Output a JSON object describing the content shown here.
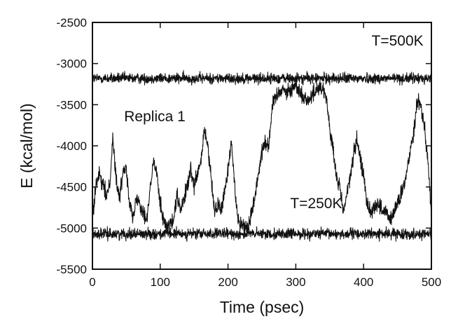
{
  "chart_data": {
    "type": "line",
    "title": "",
    "xlabel": "Time (psec)",
    "ylabel": "E (kcal/mol)",
    "xlim": [
      0,
      500
    ],
    "ylim": [
      -5500,
      -2500
    ],
    "xticks": [
      0,
      100,
      200,
      300,
      400,
      500
    ],
    "yticks": [
      -2500,
      -3000,
      -3500,
      -4000,
      -4500,
      -5000,
      -5500
    ],
    "grid": false,
    "legend": "none",
    "line_color": "#111111",
    "annotations": [
      {
        "text": "T=500K",
        "x": 450,
        "y": -2780
      },
      {
        "text": "Replica 1",
        "x": 92,
        "y": -3700
      },
      {
        "text": "T=250K",
        "x": 330,
        "y": -4760
      }
    ],
    "series": [
      {
        "role": "T=500K",
        "mean": -3180,
        "noise": 45,
        "x": [
          0,
          100,
          200,
          300,
          400,
          500
        ],
        "values": [
          -3180,
          -3180,
          -3180,
          -3180,
          -3180,
          -3180
        ]
      },
      {
        "role": "T=250K",
        "mean": -5070,
        "noise": 45,
        "x": [
          0,
          100,
          200,
          300,
          400,
          500
        ],
        "values": [
          -5070,
          -5070,
          -5070,
          -5070,
          -5070,
          -5070
        ]
      },
      {
        "role": "Replica 1",
        "noise": 70,
        "x": [
          0,
          5,
          10,
          20,
          25,
          30,
          35,
          40,
          45,
          50,
          55,
          60,
          65,
          70,
          80,
          90,
          95,
          100,
          105,
          110,
          120,
          125,
          130,
          140,
          145,
          150,
          160,
          165,
          170,
          175,
          180,
          185,
          190,
          200,
          205,
          210,
          215,
          220,
          230,
          240,
          250,
          255,
          260,
          265,
          270,
          280,
          290,
          300,
          310,
          320,
          330,
          340,
          345,
          350,
          355,
          360,
          365,
          370,
          380,
          385,
          390,
          400,
          405,
          410,
          420,
          430,
          440,
          450,
          460,
          470,
          475,
          480,
          485,
          490,
          495,
          500
        ],
        "values": [
          -4900,
          -4500,
          -4350,
          -4600,
          -4500,
          -3900,
          -4400,
          -4650,
          -4300,
          -4250,
          -4700,
          -4900,
          -4600,
          -4700,
          -4900,
          -4200,
          -4300,
          -4700,
          -4900,
          -5000,
          -4900,
          -4600,
          -4800,
          -4500,
          -4300,
          -4500,
          -4200,
          -3800,
          -4000,
          -4400,
          -4800,
          -4700,
          -4800,
          -4300,
          -3950,
          -4500,
          -4900,
          -4950,
          -5000,
          -4600,
          -4050,
          -3950,
          -4000,
          -3550,
          -3400,
          -3300,
          -3350,
          -3250,
          -3400,
          -3450,
          -3300,
          -3300,
          -3400,
          -3800,
          -4050,
          -4400,
          -4500,
          -4800,
          -4400,
          -4100,
          -3950,
          -4350,
          -4700,
          -4800,
          -4700,
          -4800,
          -4900,
          -4700,
          -4500,
          -4000,
          -3750,
          -3400,
          -3550,
          -3750,
          -4200,
          -4850
        ]
      }
    ]
  }
}
